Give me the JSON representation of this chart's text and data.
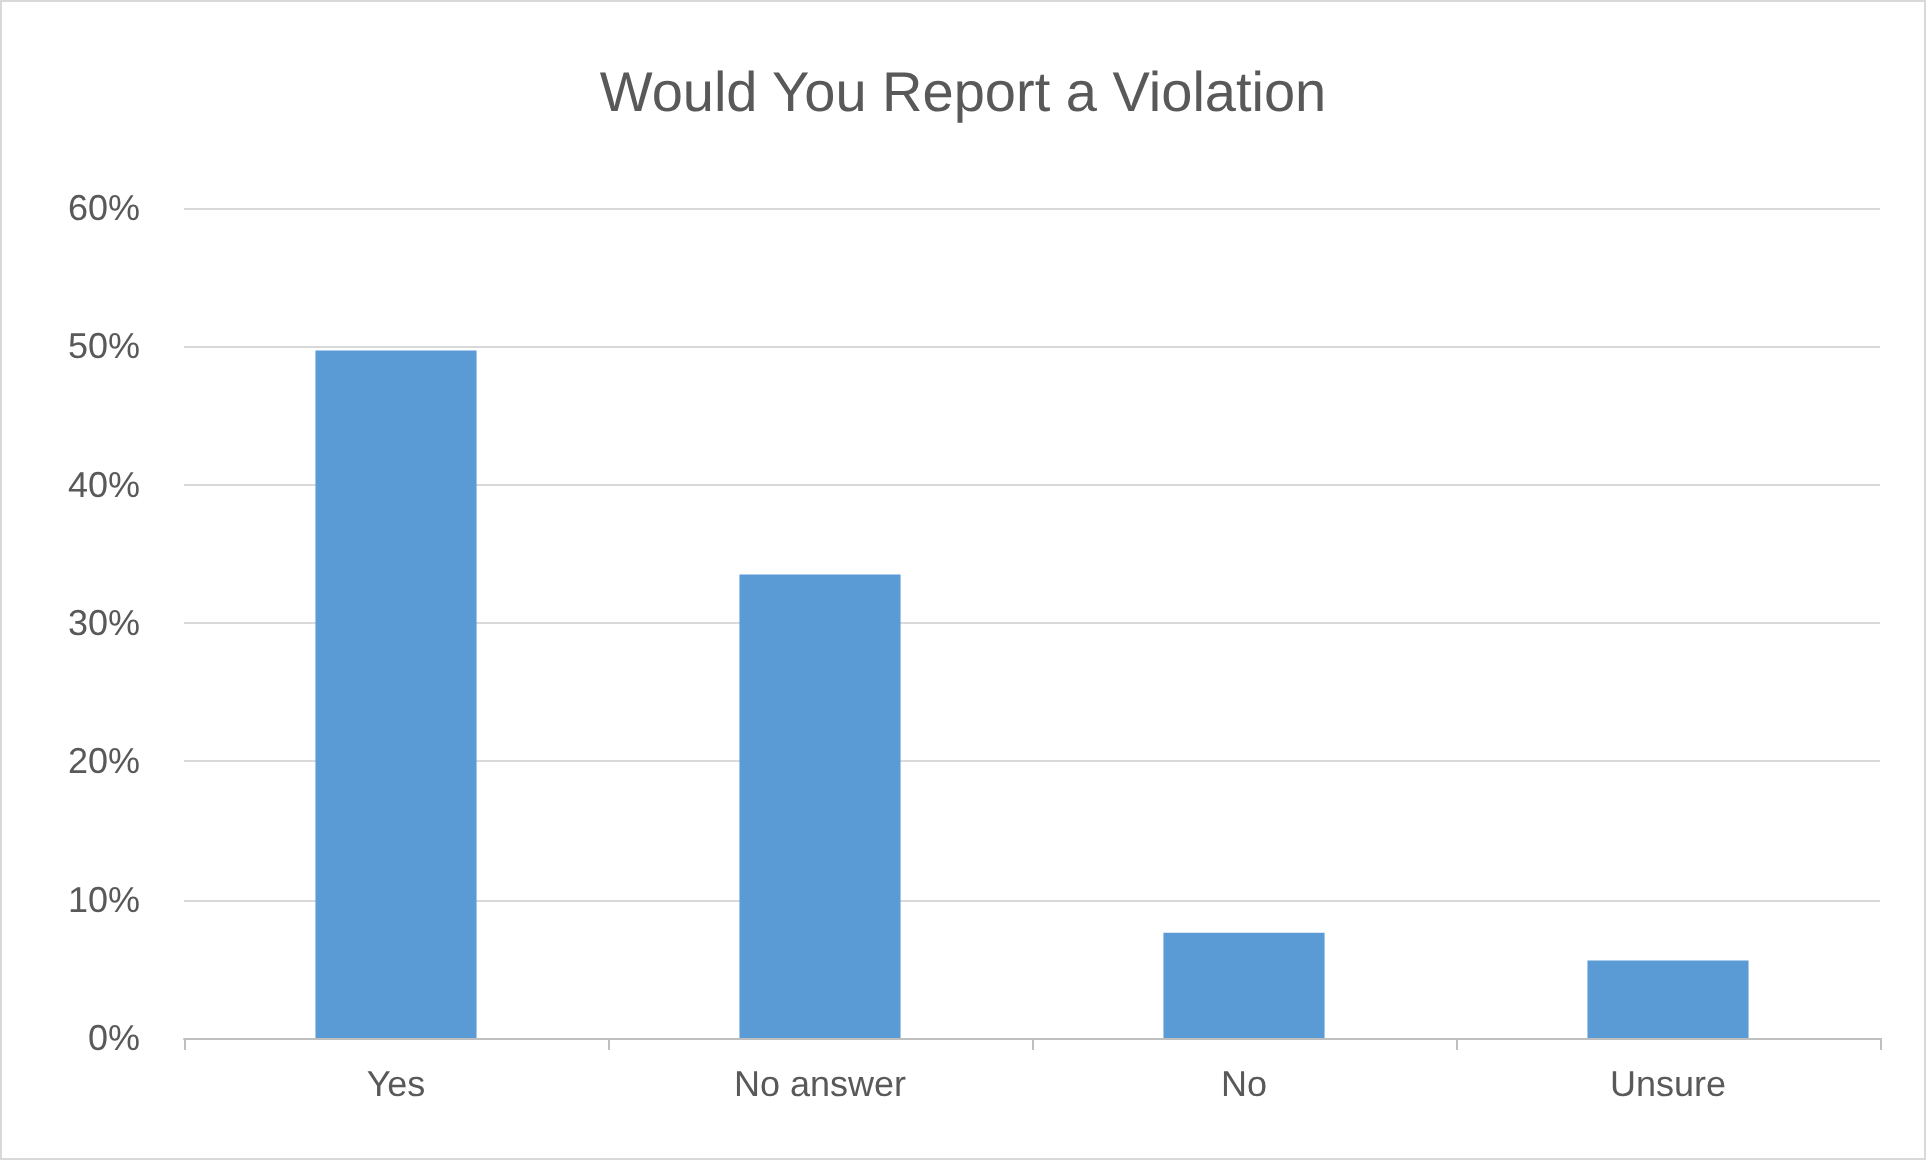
{
  "chart_data": {
    "type": "bar",
    "title": "Would You Report a Violation",
    "categories": [
      "Yes",
      "No answer",
      "No",
      "Unsure"
    ],
    "values": [
      49.7,
      33.5,
      7.6,
      5.6
    ],
    "color": "#5b9bd5",
    "ylim": [
      0,
      60
    ],
    "yticks": [
      {
        "value": 0,
        "label": "0%"
      },
      {
        "value": 10,
        "label": "10%"
      },
      {
        "value": 20,
        "label": "20%"
      },
      {
        "value": 30,
        "label": "30%"
      },
      {
        "value": 40,
        "label": "40%"
      },
      {
        "value": 50,
        "label": "50%"
      },
      {
        "value": 60,
        "label": "60%"
      }
    ],
    "grid": "y"
  }
}
